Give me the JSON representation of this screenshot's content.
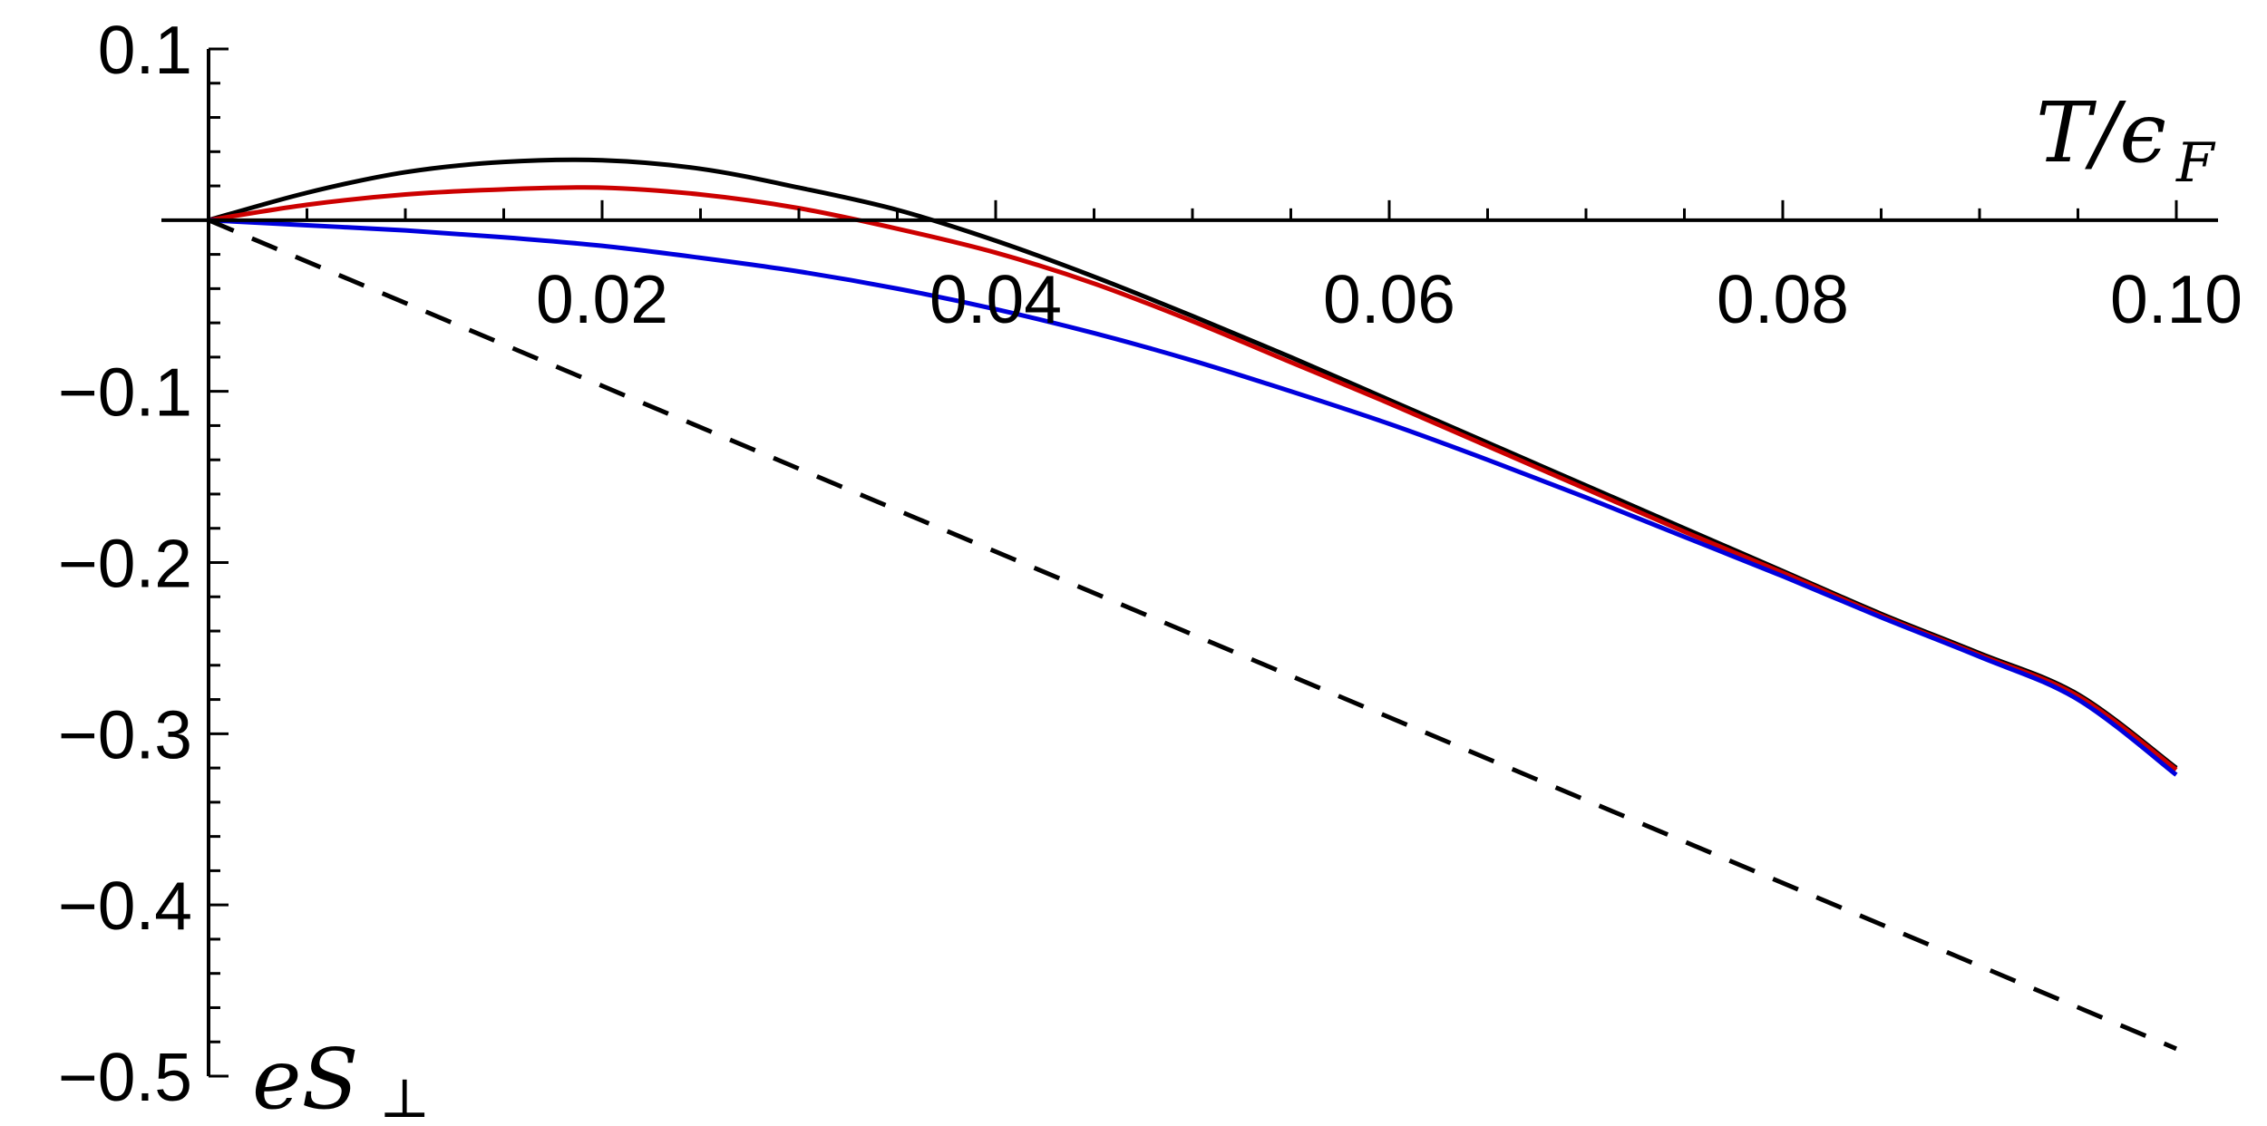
{
  "chart_data": {
    "type": "line",
    "title": "",
    "xlabel": "T/ϵF",
    "xlabel_parts": {
      "main": "T/ϵ",
      "sub": "F"
    },
    "ylabel": "eS⊥",
    "ylabel_parts": {
      "main": "eS",
      "sub": "⊥"
    },
    "xlim": [
      0,
      0.1
    ],
    "ylim": [
      -0.5,
      0.1
    ],
    "x_ticks": [
      0.02,
      0.04,
      0.06,
      0.08,
      0.1
    ],
    "x_tick_labels": [
      "0.02",
      "0.04",
      "0.06",
      "0.08",
      "0.10"
    ],
    "y_ticks": [
      0.1,
      -0.1,
      -0.2,
      -0.3,
      -0.4,
      -0.5
    ],
    "y_tick_labels": [
      "0.1",
      "−0.1",
      "−0.2",
      "−0.3",
      "−0.4",
      "−0.5"
    ],
    "x_minor_step": 0.005,
    "y_minor_step": 0.02,
    "grid": false,
    "legend": "none",
    "series": [
      {
        "color": "#000000",
        "style": "solid",
        "x": [
          0,
          0.005,
          0.01,
          0.015,
          0.02,
          0.025,
          0.03,
          0.035,
          0.04,
          0.045,
          0.05,
          0.055,
          0.06,
          0.065,
          0.07,
          0.075,
          0.08,
          0.085,
          0.09,
          0.095,
          0.1
        ],
        "y": [
          0,
          0.016,
          0.028,
          0.034,
          0.035,
          0.03,
          0.019,
          0.006,
          -0.012,
          -0.033,
          -0.056,
          -0.08,
          -0.105,
          -0.13,
          -0.155,
          -0.18,
          -0.205,
          -0.23,
          -0.253,
          -0.277,
          -0.32
        ]
      },
      {
        "color": "#cc0000",
        "style": "solid",
        "x": [
          0,
          0.005,
          0.01,
          0.015,
          0.02,
          0.025,
          0.03,
          0.035,
          0.04,
          0.045,
          0.05,
          0.055,
          0.06,
          0.065,
          0.07,
          0.075,
          0.08,
          0.085,
          0.09,
          0.095,
          0.1
        ],
        "y": [
          0,
          0.009,
          0.015,
          0.018,
          0.019,
          0.015,
          0.007,
          -0.005,
          -0.019,
          -0.037,
          -0.059,
          -0.083,
          -0.107,
          -0.132,
          -0.157,
          -0.182,
          -0.206,
          -0.231,
          -0.254,
          -0.278,
          -0.321
        ]
      },
      {
        "color": "#0000dd",
        "style": "solid",
        "x": [
          0,
          0.005,
          0.01,
          0.015,
          0.02,
          0.025,
          0.03,
          0.035,
          0.04,
          0.045,
          0.05,
          0.055,
          0.06,
          0.065,
          0.07,
          0.075,
          0.08,
          0.085,
          0.09,
          0.095,
          0.1
        ],
        "y": [
          0,
          -0.003,
          -0.006,
          -0.01,
          -0.015,
          -0.022,
          -0.03,
          -0.04,
          -0.052,
          -0.066,
          -0.082,
          -0.1,
          -0.119,
          -0.14,
          -0.162,
          -0.185,
          -0.208,
          -0.232,
          -0.255,
          -0.28,
          -0.324
        ]
      },
      {
        "color": "#000000",
        "style": "dashed",
        "x": [
          0,
          0.1
        ],
        "y": [
          0,
          -0.484
        ]
      }
    ]
  }
}
